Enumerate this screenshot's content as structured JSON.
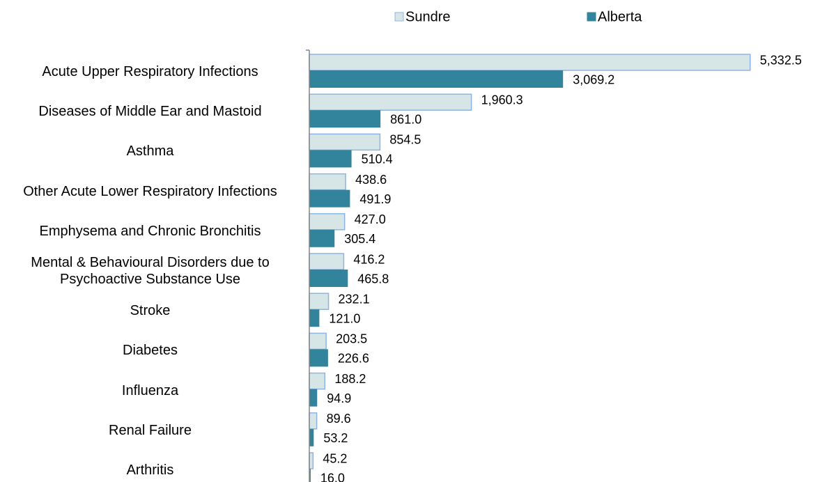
{
  "chart_data": {
    "type": "hbar",
    "categories": [
      "Acute Upper Respiratory Infections",
      "Diseases of Middle Ear and Mastoid",
      "Asthma",
      "Other Acute Lower Respiratory Infections",
      "Emphysema and Chronic Bronchitis",
      "Mental & Behavioural Disorders due to Psychoactive Substance Use",
      "Stroke",
      "Diabetes",
      "Influenza",
      "Renal Failure",
      "Arthritis"
    ],
    "series": [
      {
        "name": "Sundre",
        "color": "#d6e5e5",
        "values": [
          5332.5,
          1960.3,
          854.5,
          438.6,
          427.0,
          416.2,
          232.1,
          203.5,
          188.2,
          89.6,
          45.2
        ],
        "value_labels": [
          "5,332.5",
          "1,960.3",
          "854.5",
          "438.6",
          "427.0",
          "416.2",
          "232.1",
          "203.5",
          "188.2",
          "89.6",
          "45.2"
        ]
      },
      {
        "name": "Alberta",
        "color": "#31849b",
        "values": [
          3069.2,
          861.0,
          510.4,
          491.9,
          305.4,
          465.8,
          121.0,
          226.6,
          94.9,
          53.2,
          16.0
        ],
        "value_labels": [
          "3,069.2",
          "861.0",
          "510.4",
          "491.9",
          "305.4",
          "465.8",
          "121.0",
          "226.6",
          "94.9",
          "53.2",
          "16.0"
        ]
      }
    ],
    "xlim": [
      0,
      6000
    ],
    "legend": "top"
  }
}
